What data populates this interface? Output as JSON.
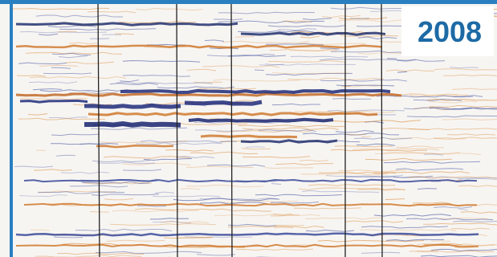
{
  "label": "2008"
}
